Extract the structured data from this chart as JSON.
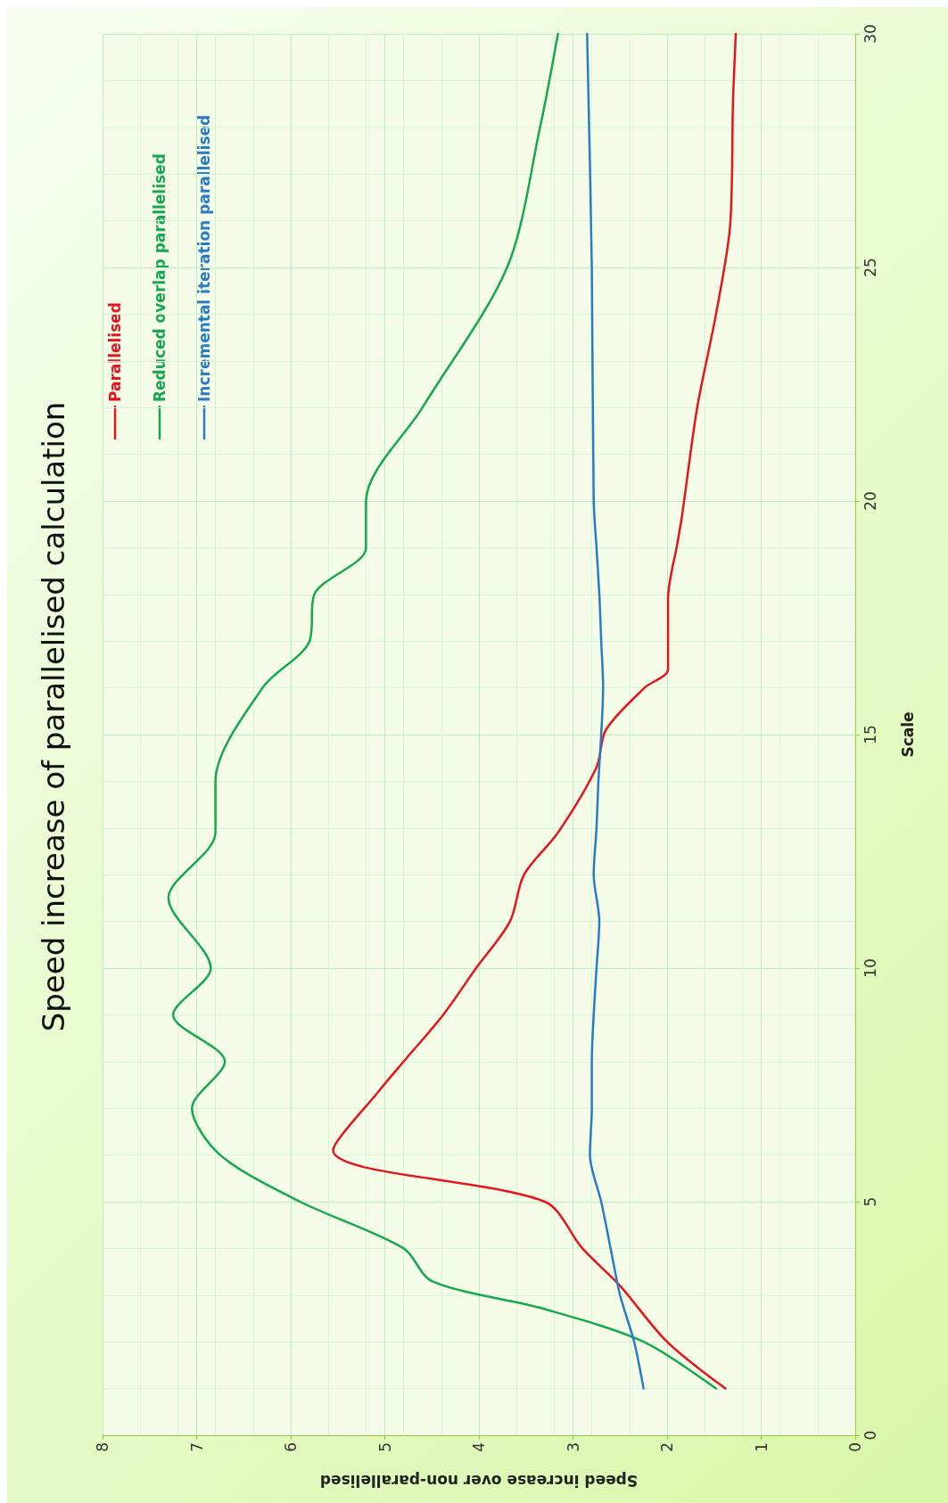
{
  "chart_data": {
    "type": "line",
    "title": "Speed increase of parallelised calculation",
    "xlabel": "Speed increase over non-parallelised",
    "ylabel": "Scale",
    "xlim": [
      8,
      0
    ],
    "xticks": [
      8,
      7,
      6,
      5,
      4,
      3,
      2,
      1,
      0
    ],
    "ylim": [
      0,
      30
    ],
    "yticks": [
      0,
      5,
      10,
      15,
      20,
      25,
      30
    ],
    "grid": true,
    "legend": "top left",
    "marker": "none",
    "line_style": "solid",
    "series": [
      {
        "name": "Parallelised",
        "color": "#e8141b",
        "values": [
          1,
          2,
          3.2,
          4,
          5,
          6.1,
          7.4,
          8,
          9,
          10,
          11,
          12,
          12.9,
          14.3,
          15.1,
          16,
          16.4,
          17.9,
          19.1,
          19.7,
          22,
          24,
          25.9,
          28.5,
          30
        ],
        "x": [
          1.38,
          2.0,
          2.5,
          2.9,
          3.3,
          5.55,
          5.05,
          4.8,
          4.38,
          4.03,
          3.67,
          3.52,
          3.16,
          2.75,
          2.65,
          2.24,
          1.99,
          1.99,
          1.89,
          1.84,
          1.68,
          1.48,
          1.33,
          1.3,
          1.27
        ]
      },
      {
        "name": "Reduced overlap parallelised",
        "color": "#16a84e",
        "values": [
          1,
          2,
          2.7,
          3.3,
          4,
          5,
          6,
          7,
          8,
          9,
          10,
          11.5,
          12.9,
          14,
          16,
          17,
          18,
          19,
          20,
          22,
          25,
          28,
          30
        ],
        "x": [
          1.48,
          2.25,
          3.3,
          4.5,
          4.8,
          5.9,
          6.75,
          7.05,
          6.7,
          7.25,
          6.85,
          7.3,
          6.8,
          6.8,
          6.3,
          5.8,
          5.75,
          5.2,
          5.2,
          4.6,
          3.7,
          3.35,
          3.16
        ]
      },
      {
        "name": "Incremental iteration parallelised",
        "color": "#2a7bc6",
        "values": [
          1,
          2,
          3,
          4,
          5,
          6,
          7,
          8,
          9,
          10,
          11,
          12,
          13,
          14,
          15,
          16,
          17,
          18,
          19,
          20,
          25,
          30
        ],
        "x": [
          2.25,
          2.35,
          2.5,
          2.6,
          2.7,
          2.82,
          2.8,
          2.8,
          2.78,
          2.75,
          2.72,
          2.78,
          2.75,
          2.73,
          2.7,
          2.68,
          2.7,
          2.72,
          2.75,
          2.78,
          2.8,
          2.85
        ]
      }
    ]
  }
}
